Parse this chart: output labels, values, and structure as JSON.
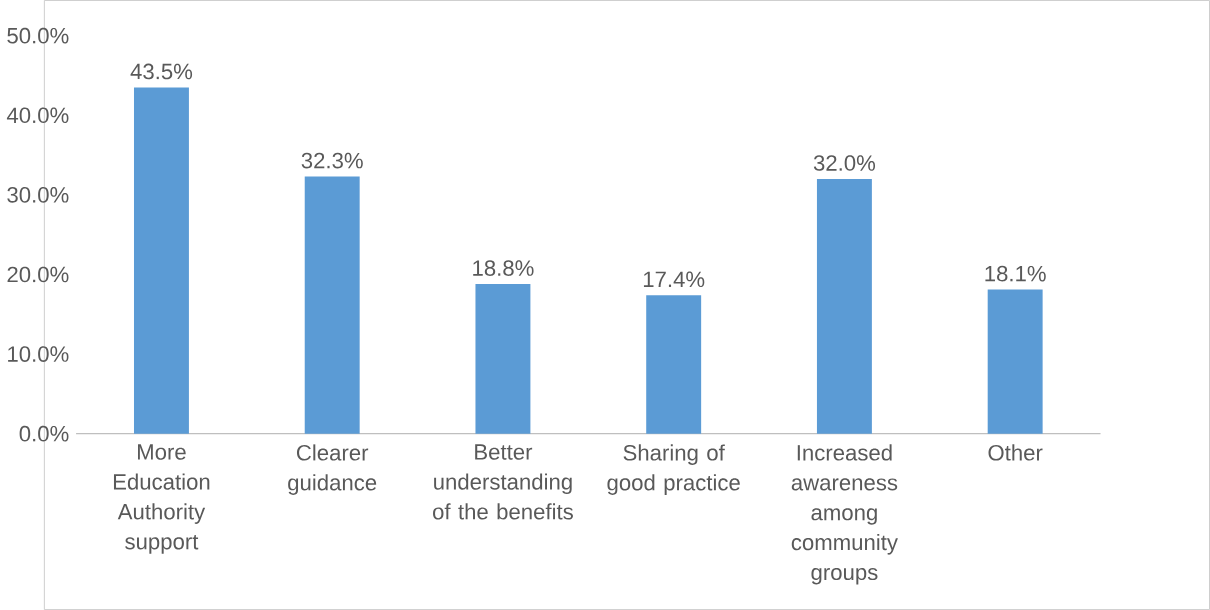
{
  "chart_data": {
    "type": "bar",
    "categories": [
      "More Education Authority support",
      "Clearer guidance",
      "Better understanding of the benefits",
      "Sharing of good practice",
      "Increased awareness among community groups",
      "Other"
    ],
    "values": [
      43.5,
      32.3,
      18.8,
      17.4,
      32.0,
      18.1
    ],
    "value_labels": [
      "43.5%",
      "32.3%",
      "18.8%",
      "17.4%",
      "32.0%",
      "18.1%"
    ],
    "color": "#5b9bd5",
    "ylim": [
      0,
      50
    ],
    "yticks": [
      {
        "value": 0,
        "label": "0.0%"
      },
      {
        "value": 10,
        "label": "10.0%"
      },
      {
        "value": 20,
        "label": "20.0%"
      },
      {
        "value": 30,
        "label": "30.0%"
      },
      {
        "value": 40,
        "label": "40.0%"
      },
      {
        "value": 50,
        "label": "50.0%"
      }
    ]
  }
}
